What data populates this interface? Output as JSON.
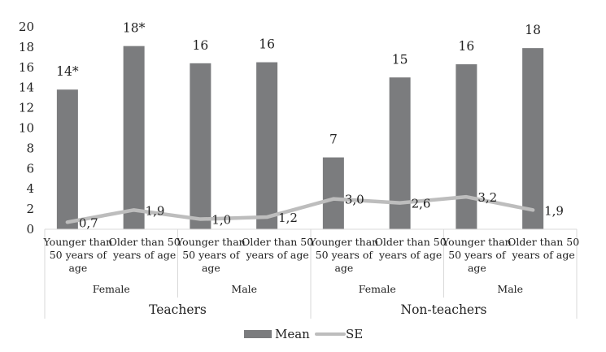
{
  "chart_data": {
    "type": "bar",
    "title": "",
    "xlabel": "",
    "ylabel": "",
    "ylim": [
      0,
      20
    ],
    "yticks": [
      0,
      2,
      4,
      6,
      8,
      10,
      12,
      14,
      16,
      18,
      20
    ],
    "grid": false,
    "legend_position": "bottom",
    "categories": [
      "Younger than 50 years of age",
      "Older than 50 years of age",
      "Younger than 50 years of age",
      "Older than 50 years of age",
      "Younger than 50 years of age",
      "Older than 50 years of age",
      "Younger than 50 years of age",
      "Older than 50 years of age"
    ],
    "category_lines": [
      [
        "Younger than",
        "50 years of",
        "age"
      ],
      [
        "Older than 50",
        "years of age"
      ],
      [
        "Younger than",
        "50 years of",
        "age"
      ],
      [
        "Older than 50",
        "years of age"
      ],
      [
        "Younger than",
        "50 years of",
        "age"
      ],
      [
        "Older than 50",
        "years of age"
      ],
      [
        "Younger than",
        "50 years of",
        "age"
      ],
      [
        "Older than 50",
        "years of age"
      ]
    ],
    "sex_groups": [
      "Female",
      "Male",
      "Female",
      "Male"
    ],
    "occupation_groups": [
      "Teachers",
      "Non-teachers"
    ],
    "series": [
      {
        "name": "Mean",
        "kind": "bar",
        "color": "#7b7c7e",
        "values": [
          13.8,
          18.1,
          16.4,
          16.5,
          7.1,
          15.0,
          16.3,
          17.9
        ],
        "labels": [
          "14*",
          "18*",
          "16",
          "16",
          "7",
          "15",
          "16",
          "18"
        ]
      },
      {
        "name": "SE",
        "kind": "line",
        "color": "#bdbdbd",
        "values": [
          0.7,
          1.9,
          1.0,
          1.2,
          3.0,
          2.6,
          3.2,
          1.9
        ],
        "labels": [
          "0,7",
          "1,9",
          "1,0",
          "1,2",
          "3,0",
          "2,6",
          "3,2",
          "1,9"
        ]
      }
    ]
  },
  "legend": {
    "mean_label": "Mean",
    "se_label": "SE"
  }
}
